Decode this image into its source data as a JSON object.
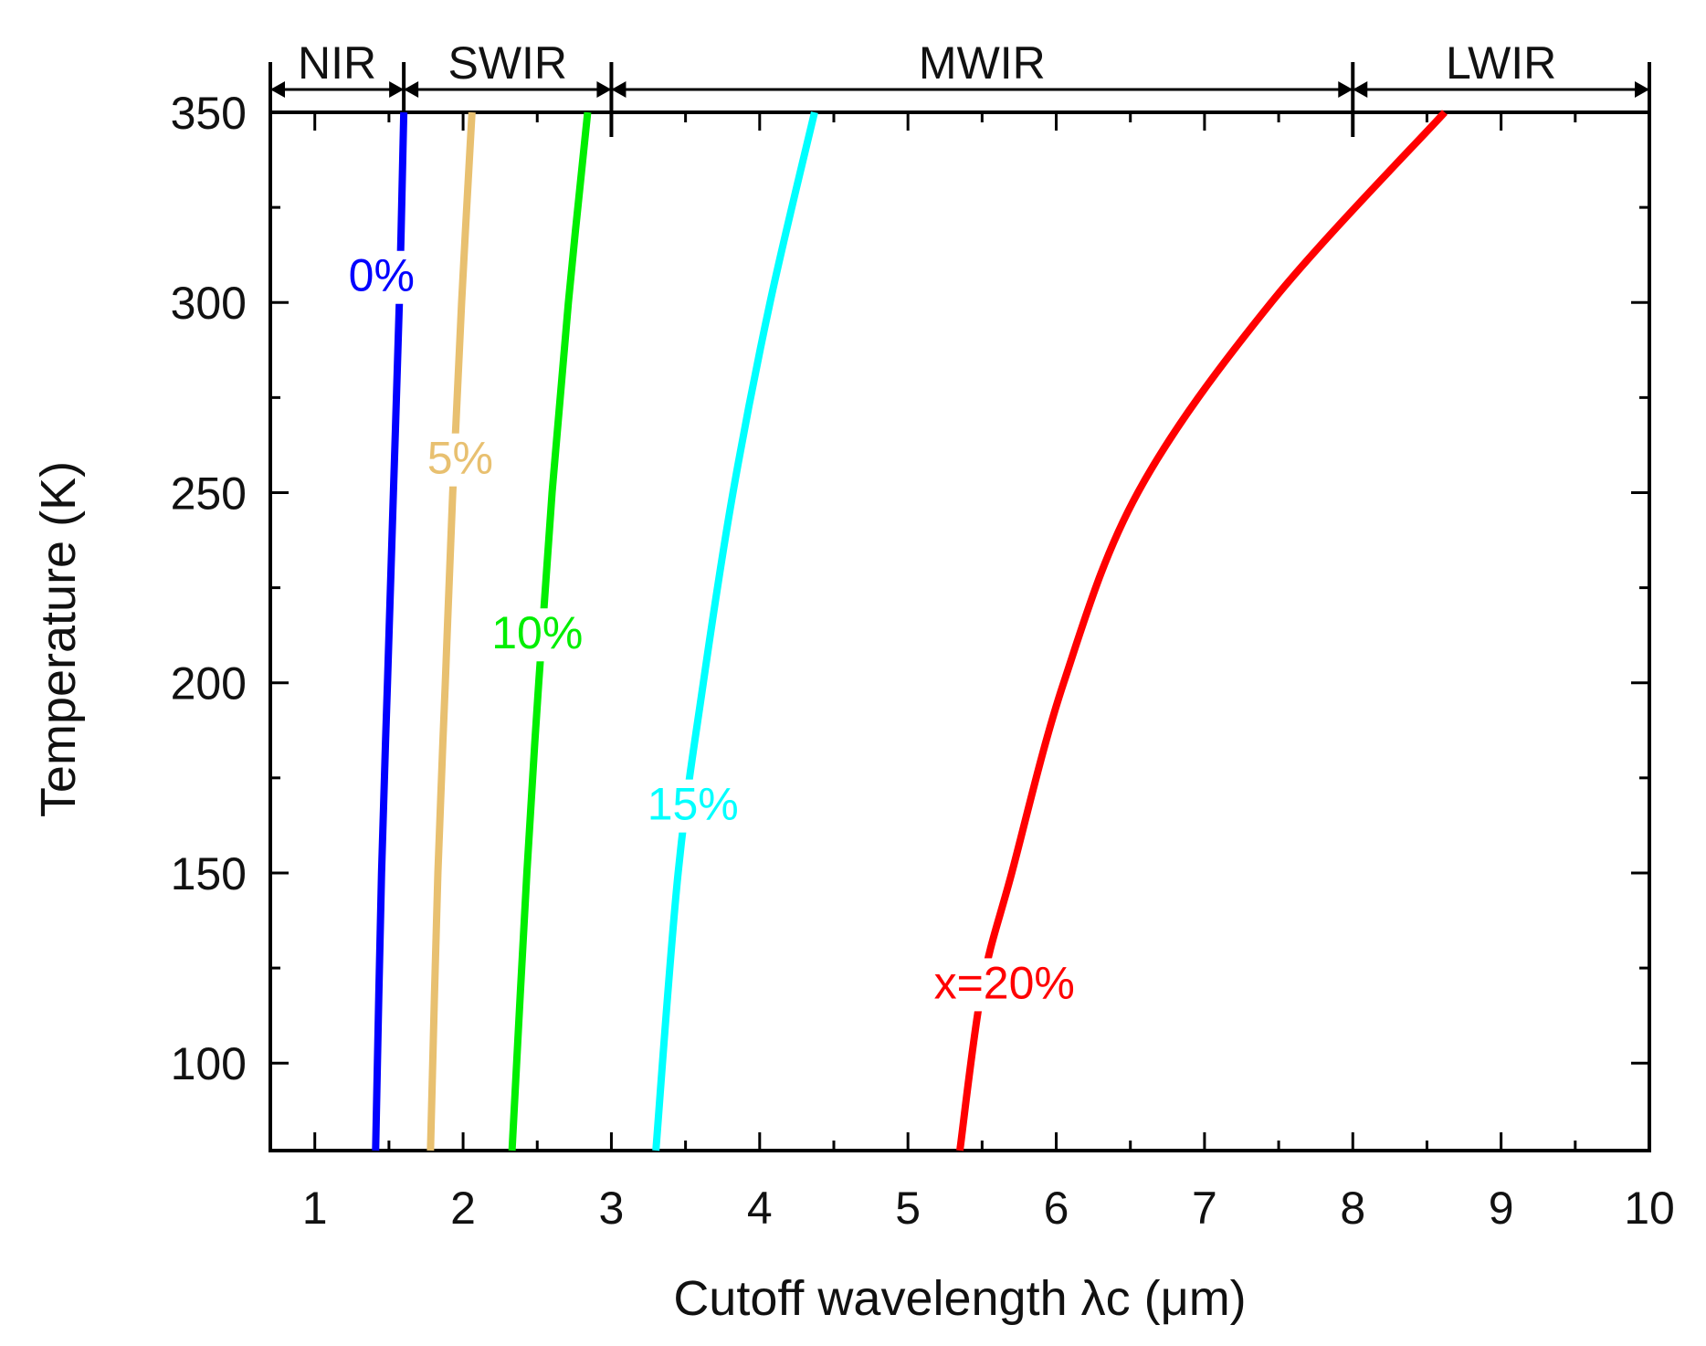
{
  "chart_data": {
    "type": "line",
    "title": "",
    "xlabel": "Cutoff wavelength λc (μm)",
    "ylabel": "Temperature (K)",
    "xlim": [
      0.7,
      10
    ],
    "ylim": [
      77,
      350
    ],
    "x_ticks": [
      1,
      2,
      3,
      4,
      5,
      6,
      7,
      8,
      9,
      10
    ],
    "x_tick_labels": [
      "1",
      "2",
      "3",
      "4",
      "5",
      "6",
      "7",
      "8",
      "9",
      "10"
    ],
    "y_ticks": [
      100,
      150,
      200,
      250,
      300,
      350
    ],
    "y_tick_labels": [
      "100",
      "150",
      "200",
      "250",
      "300",
      "350"
    ],
    "grid": false,
    "series": [
      {
        "name": "0%",
        "label": "0%",
        "color": "#0000ff",
        "label_at": [
          1.45,
          303
        ],
        "points": [
          [
            1.41,
            77
          ],
          [
            1.45,
            150
          ],
          [
            1.49,
            200
          ],
          [
            1.53,
            250
          ],
          [
            1.57,
            300
          ],
          [
            1.6,
            350
          ]
        ]
      },
      {
        "name": "5%",
        "label": "5%",
        "color": "#e8c070",
        "label_at": [
          1.98,
          255
        ],
        "points": [
          [
            1.78,
            77
          ],
          [
            1.83,
            150
          ],
          [
            1.88,
            200
          ],
          [
            1.93,
            250
          ],
          [
            1.99,
            300
          ],
          [
            2.06,
            350
          ]
        ]
      },
      {
        "name": "10%",
        "label": "10%",
        "color": "#00ee00",
        "label_at": [
          2.5,
          209
        ],
        "points": [
          [
            2.33,
            77
          ],
          [
            2.43,
            150
          ],
          [
            2.51,
            200
          ],
          [
            2.6,
            250
          ],
          [
            2.71,
            300
          ],
          [
            2.84,
            350
          ]
        ]
      },
      {
        "name": "15%",
        "label": "15%",
        "color": "#00ffff",
        "label_at": [
          3.55,
          164
        ],
        "points": [
          [
            3.3,
            77
          ],
          [
            3.45,
            150
          ],
          [
            3.62,
            200
          ],
          [
            3.82,
            250
          ],
          [
            4.07,
            300
          ],
          [
            4.37,
            350
          ]
        ]
      },
      {
        "name": "x=20%",
        "label": "x=20%",
        "color": "#ff0000",
        "label_at": [
          5.65,
          117
        ],
        "points": [
          [
            5.35,
            77
          ],
          [
            5.5,
            120
          ],
          [
            5.7,
            150
          ],
          [
            6.05,
            200
          ],
          [
            6.55,
            250
          ],
          [
            7.45,
            300
          ],
          [
            8.62,
            350
          ]
        ]
      }
    ],
    "bands": {
      "divisions": [
        0.7,
        1.6,
        3,
        8,
        10
      ],
      "labels": [
        {
          "text": "NIR",
          "from": 0.7,
          "to": 1.6
        },
        {
          "text": "SWIR",
          "from": 1.6,
          "to": 3
        },
        {
          "text": "MWIR",
          "from": 3,
          "to": 8
        },
        {
          "text": "LWIR",
          "from": 8,
          "to": 10
        }
      ]
    }
  }
}
